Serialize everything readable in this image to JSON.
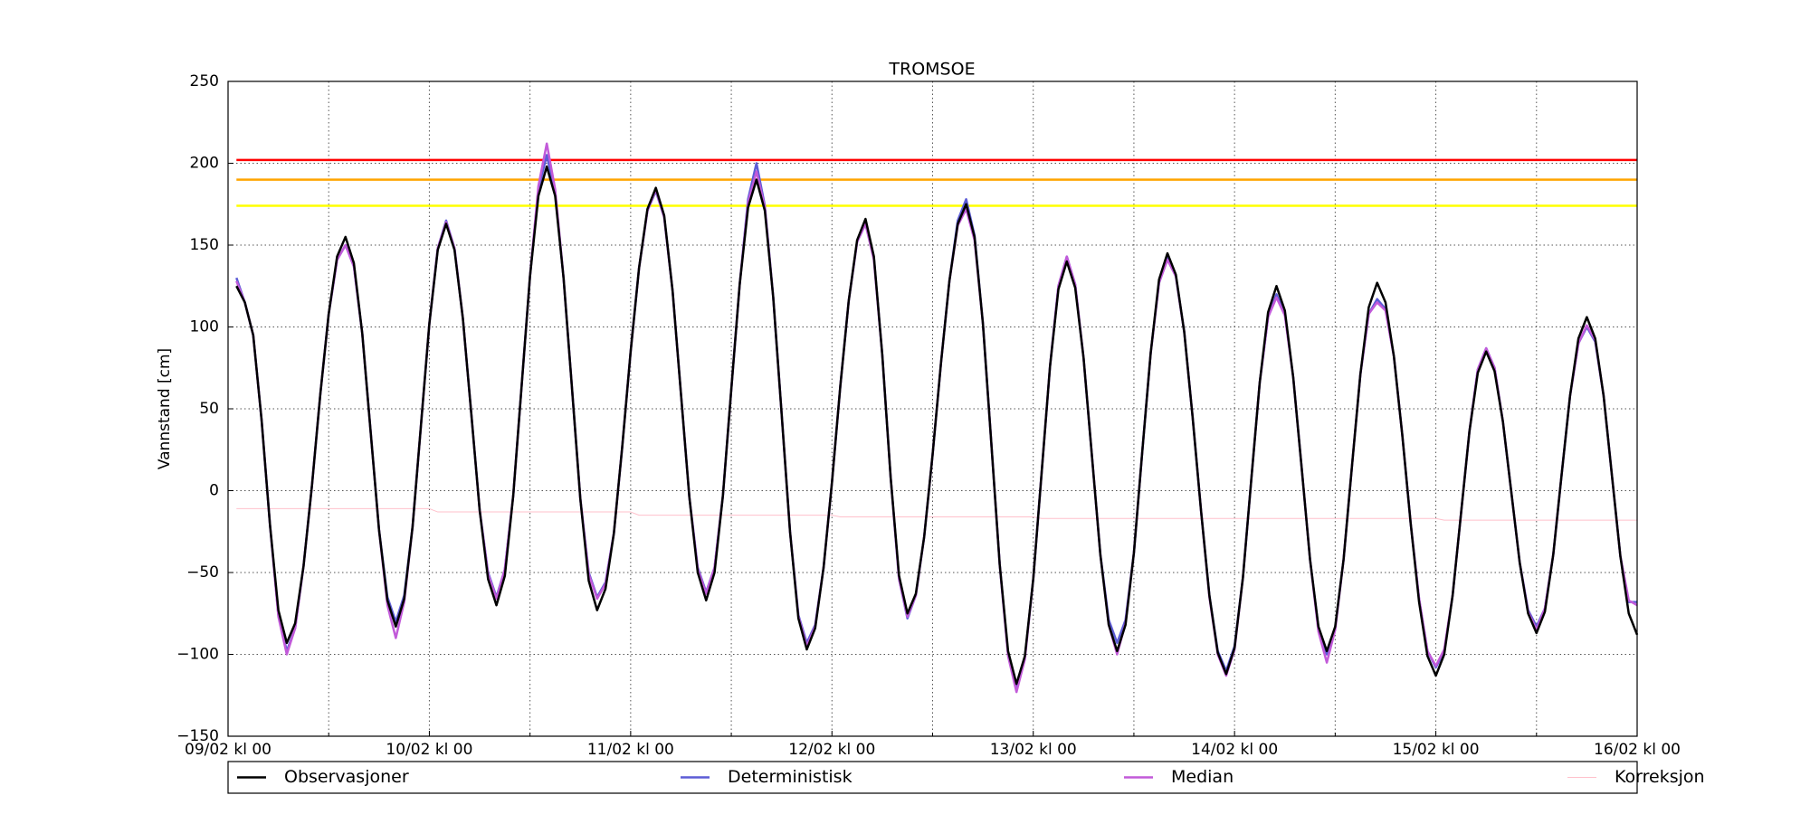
{
  "chart_data": {
    "type": "line",
    "title": "TROMSOE",
    "y_label": "Vannstand [cm]",
    "legend": "below",
    "grid": true,
    "xlim": [
      0,
      168
    ],
    "xticks": [
      {
        "value": 0,
        "label": "09/02 kl 00"
      },
      {
        "value": 24,
        "label": "10/02 kl 00"
      },
      {
        "value": 48,
        "label": "11/02 kl 00"
      },
      {
        "value": 72,
        "label": "12/02 kl 00"
      },
      {
        "value": 96,
        "label": "13/02 kl 00"
      },
      {
        "value": 120,
        "label": "14/02 kl 00"
      },
      {
        "value": 144,
        "label": "15/02 kl 00"
      },
      {
        "value": 168,
        "label": "16/02 kl 00"
      }
    ],
    "x_minor_ticks": [
      12,
      36,
      60,
      84,
      108,
      132,
      156
    ],
    "ylim": [
      -150,
      250
    ],
    "yticks": [
      {
        "value": -150,
        "label": "−150"
      },
      {
        "value": -100,
        "label": "−100"
      },
      {
        "value": -50,
        "label": "−50"
      },
      0,
      50,
      100,
      150,
      200,
      250
    ],
    "threshold_lines": [
      {
        "value": 202,
        "color": "#ff0000"
      },
      {
        "value": 190,
        "color": "#ffa500"
      },
      {
        "value": 174,
        "color": "#ffff00"
      }
    ],
    "x": [
      1,
      2,
      3,
      4,
      5,
      6,
      7,
      8,
      9,
      10,
      11,
      12,
      13,
      14,
      15,
      16,
      17,
      18,
      19,
      20,
      21,
      22,
      23,
      24,
      25,
      26,
      27,
      28,
      29,
      30,
      31,
      32,
      33,
      34,
      35,
      36,
      37,
      38,
      39,
      40,
      41,
      42,
      43,
      44,
      45,
      46,
      47,
      48,
      49,
      50,
      51,
      52,
      53,
      54,
      55,
      56,
      57,
      58,
      59,
      60,
      61,
      62,
      63,
      64,
      65,
      66,
      67,
      68,
      69,
      70,
      71,
      72,
      73,
      74,
      75,
      76,
      77,
      78,
      79,
      80,
      81,
      82,
      83,
      84,
      85,
      86,
      87,
      88,
      89,
      90,
      91,
      92,
      93,
      94,
      95,
      96,
      97,
      98,
      99,
      100,
      101,
      102,
      103,
      104,
      105,
      106,
      107,
      108,
      109,
      110,
      111,
      112,
      113,
      114,
      115,
      116,
      117,
      118,
      119,
      120,
      121,
      122,
      123,
      124,
      125,
      126,
      127,
      128,
      129,
      130,
      131,
      132,
      133,
      134,
      135,
      136,
      137,
      138,
      139,
      140,
      141,
      142,
      143,
      144,
      145,
      146,
      147,
      148,
      149,
      150,
      151,
      152,
      153,
      154,
      155,
      156,
      157,
      158,
      159,
      160,
      161,
      162,
      163,
      164,
      165,
      166,
      167,
      168
    ],
    "series": [
      {
        "name": "Observasjoner",
        "color": "#000000",
        "width": 2.5,
        "values": [
          125,
          115,
          95,
          43,
          -21,
          -73,
          -93,
          -81,
          -46,
          3,
          59,
          108,
          143,
          155,
          139,
          96,
          36,
          -24,
          -67,
          -83,
          -66,
          -22,
          40,
          102,
          147,
          163,
          147,
          105,
          47,
          -12,
          -54,
          -70,
          -52,
          -3,
          64,
          131,
          180,
          198,
          180,
          130,
          63,
          -5,
          -55,
          -73,
          -60,
          -26,
          27,
          85,
          136,
          172,
          185,
          168,
          122,
          59,
          -4,
          -50,
          -67,
          -50,
          -3,
          62,
          126,
          173,
          190,
          171,
          118,
          47,
          -25,
          -78,
          -97,
          -84,
          -47,
          5,
          64,
          116,
          153,
          166,
          143,
          83,
          8,
          -52,
          -75,
          -63,
          -28,
          22,
          78,
          128,
          163,
          175,
          155,
          102,
          29,
          -45,
          -98,
          -118,
          -101,
          -54,
          11,
          76,
          123,
          140,
          124,
          81,
          21,
          -39,
          -82,
          -98,
          -82,
          -38,
          24,
          84,
          129,
          145,
          132,
          97,
          45,
          -12,
          -64,
          -99,
          -112,
          -96,
          -53,
          7,
          66,
          109,
          125,
          110,
          69,
          14,
          -42,
          -83,
          -98,
          -83,
          -42,
          15,
          71,
          112,
          127,
          115,
          82,
          34,
          -20,
          -68,
          -101,
          -113,
          -100,
          -64,
          -14,
          36,
          72,
          85,
          73,
          42,
          -1,
          -44,
          -75,
          -87,
          -74,
          -39,
          10,
          58,
          93,
          106,
          93,
          58,
          9,
          -40,
          -75,
          -88
        ]
      },
      {
        "name": "Deterministisk",
        "color": "#5c5cd6",
        "width": 2.5,
        "values": [
          130,
          115,
          95,
          43,
          -21,
          -76,
          -98,
          -84,
          -46,
          3,
          59,
          108,
          141,
          150,
          137,
          96,
          36,
          -24,
          -65,
          -80,
          -64,
          -22,
          40,
          102,
          148,
          165,
          148,
          105,
          47,
          -12,
          -50,
          -65,
          -48,
          -3,
          64,
          131,
          184,
          205,
          182,
          130,
          63,
          -5,
          -50,
          -65,
          -56,
          -26,
          27,
          85,
          136,
          171,
          183,
          167,
          122,
          59,
          -4,
          -47,
          -62,
          -47,
          -3,
          62,
          126,
          178,
          200,
          174,
          118,
          47,
          -25,
          -76,
          -93,
          -82,
          -47,
          5,
          64,
          116,
          152,
          163,
          142,
          83,
          8,
          -54,
          -78,
          -64,
          -28,
          22,
          78,
          128,
          165,
          178,
          156,
          102,
          29,
          -45,
          -100,
          -120,
          -102,
          -54,
          11,
          76,
          125,
          143,
          126,
          81,
          21,
          -39,
          -79,
          -93,
          -79,
          -38,
          24,
          84,
          127,
          142,
          131,
          97,
          45,
          -12,
          -64,
          -98,
          -110,
          -95,
          -53,
          7,
          66,
          106,
          120,
          108,
          69,
          14,
          -42,
          -84,
          -100,
          -84,
          -42,
          15,
          71,
          108,
          117,
          111,
          82,
          34,
          -20,
          -66,
          -98,
          -108,
          -98,
          -64,
          -14,
          36,
          74,
          87,
          75,
          42,
          -1,
          -44,
          -73,
          -83,
          -72,
          -39,
          10,
          58,
          90,
          100,
          91,
          58,
          9,
          -40,
          -68,
          -68
        ]
      },
      {
        "name": "Median",
        "color": "#c25ad9",
        "width": 2.5,
        "values": [
          128,
          115,
          95,
          43,
          -21,
          -77,
          -100,
          -84,
          -46,
          3,
          59,
          108,
          141,
          150,
          137,
          96,
          36,
          -24,
          -70,
          -90,
          -68,
          -22,
          40,
          102,
          148,
          164,
          148,
          105,
          47,
          -12,
          -51,
          -66,
          -48,
          -3,
          64,
          131,
          186,
          212,
          184,
          130,
          63,
          -5,
          -51,
          -66,
          -57,
          -26,
          27,
          85,
          136,
          171,
          184,
          167,
          122,
          59,
          -4,
          -48,
          -63,
          -47,
          -3,
          62,
          126,
          176,
          195,
          173,
          118,
          47,
          -25,
          -77,
          -95,
          -83,
          -47,
          5,
          64,
          116,
          152,
          163,
          141,
          83,
          8,
          -54,
          -77,
          -64,
          -28,
          22,
          78,
          128,
          162,
          172,
          153,
          102,
          29,
          -45,
          -101,
          -123,
          -103,
          -54,
          11,
          76,
          125,
          143,
          126,
          81,
          21,
          -39,
          -82,
          -100,
          -81,
          -38,
          24,
          84,
          127,
          141,
          131,
          97,
          45,
          -12,
          -65,
          -100,
          -113,
          -97,
          -53,
          7,
          66,
          106,
          118,
          107,
          69,
          14,
          -42,
          -86,
          -105,
          -85,
          -42,
          15,
          71,
          108,
          115,
          110,
          82,
          34,
          -20,
          -66,
          -98,
          -107,
          -97,
          -64,
          -14,
          36,
          74,
          87,
          75,
          42,
          -1,
          -44,
          -74,
          -85,
          -72,
          -39,
          10,
          58,
          90,
          101,
          92,
          58,
          9,
          -40,
          -67,
          -70
        ]
      },
      {
        "name": "Korreksjon",
        "color": "#ffc0cb",
        "width": 1,
        "x": [
          1,
          24,
          25,
          48,
          49,
          72,
          73,
          96,
          97,
          120,
          121,
          144,
          145,
          168
        ],
        "values": [
          -11,
          -11,
          -13,
          -13,
          -15,
          -15,
          -16,
          -16,
          -17,
          -17,
          -17,
          -17,
          -18,
          -18
        ]
      }
    ]
  }
}
